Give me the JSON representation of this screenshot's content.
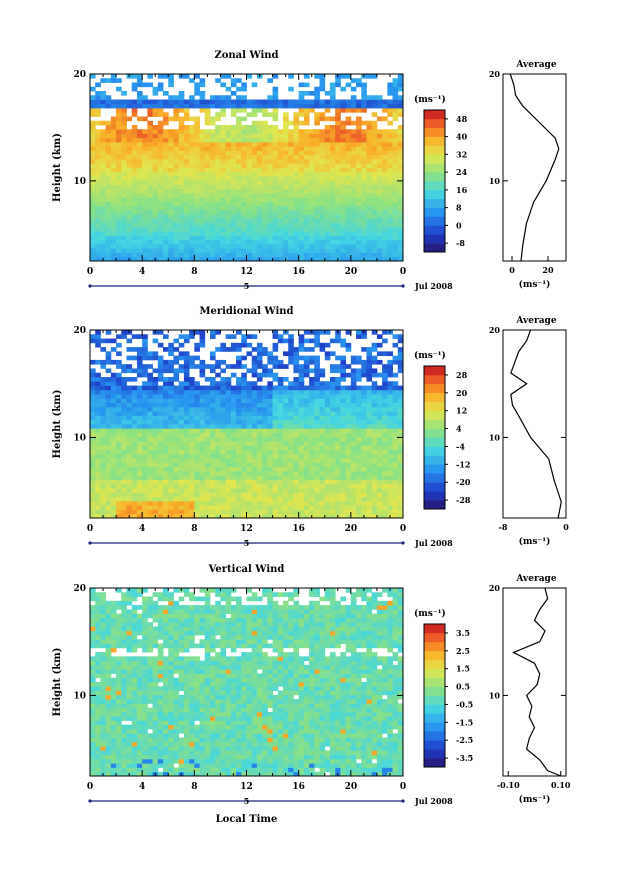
{
  "page": {
    "date_label": "Jul 2008",
    "xlabel": "Local Time",
    "day_label": "5"
  },
  "chart_data": [
    {
      "type": "heatmap",
      "title": "Zonal Wind",
      "ylabel": "Height (km)",
      "yticks": [
        "20",
        "10"
      ],
      "ylim": [
        2.5,
        20
      ],
      "xlim": [
        0,
        24
      ],
      "xtick_labels": [
        "0",
        "4",
        "8",
        "12",
        "16",
        "20",
        "0"
      ],
      "colorbar": {
        "unit": "(ms⁻¹)",
        "ticks": [
          "48",
          "40",
          "32",
          "24",
          "16",
          "8",
          "0",
          "-8"
        ],
        "range": [
          -12,
          52
        ]
      },
      "average": {
        "title": "Average",
        "yticks": [
          "20",
          "10"
        ],
        "xtick_labels": [
          "0",
          "20"
        ],
        "xlabel": "(ms⁻¹)",
        "xlim": [
          -5,
          30
        ],
        "profile_height_km": [
          2.5,
          4,
          6,
          8,
          10,
          12,
          13,
          14,
          15,
          16,
          17,
          18,
          19,
          20
        ],
        "profile_value": [
          5,
          6,
          8,
          12,
          19,
          24,
          26,
          24,
          18,
          12,
          6,
          2,
          1,
          -1
        ]
      }
    },
    {
      "type": "heatmap",
      "title": "Meridional Wind",
      "ylabel": "Height (km)",
      "yticks": [
        "20",
        "10"
      ],
      "ylim": [
        2.5,
        20
      ],
      "xlim": [
        0,
        24
      ],
      "xtick_labels": [
        "0",
        "4",
        "8",
        "12",
        "16",
        "20",
        "0"
      ],
      "colorbar": {
        "unit": "(ms⁻¹)",
        "ticks": [
          "28",
          "20",
          "12",
          "4",
          "-4",
          "-12",
          "-20",
          "-28"
        ],
        "range": [
          -32,
          32
        ]
      },
      "average": {
        "title": "Average",
        "yticks": [
          "20",
          "10"
        ],
        "xtick_labels": [
          "-8",
          "0"
        ],
        "xlabel": "(ms⁻¹)",
        "xlim": [
          -8,
          0
        ],
        "profile_height_km": [
          2.5,
          4,
          6,
          8,
          10,
          12,
          13,
          14,
          15,
          16,
          17,
          18,
          19,
          20
        ],
        "profile_value": [
          -1,
          -0.6,
          -1.5,
          -2.2,
          -4.5,
          -6,
          -6.8,
          -7,
          -5,
          -7,
          -6.5,
          -6,
          -5,
          -4.5
        ]
      }
    },
    {
      "type": "heatmap",
      "title": "Vertical Wind",
      "ylabel": "Height (km)",
      "yticks": [
        "20",
        "10"
      ],
      "ylim": [
        2.5,
        20
      ],
      "xlim": [
        0,
        24
      ],
      "xtick_labels": [
        "0",
        "4",
        "8",
        "12",
        "16",
        "20",
        "0"
      ],
      "colorbar": {
        "unit": "(ms⁻¹)",
        "ticks": [
          "3.5",
          "2.5",
          "1.5",
          "0.5",
          "-0.5",
          "-1.5",
          "-2.5",
          "-3.5"
        ],
        "range": [
          -4,
          4
        ]
      },
      "average": {
        "title": "Average",
        "yticks": [
          "20",
          "10"
        ],
        "xtick_labels": [
          "-0.10",
          "0.10"
        ],
        "xlabel": "(ms⁻¹)",
        "xlim": [
          -0.12,
          0.12
        ],
        "profile_height_km": [
          2.5,
          3,
          4,
          5,
          6,
          7,
          8,
          9,
          10,
          11,
          12,
          13,
          14,
          15,
          16,
          17,
          18,
          19,
          20
        ],
        "profile_value": [
          0.1,
          0.05,
          0.02,
          -0.03,
          -0.02,
          0,
          -0.02,
          -0.01,
          -0.03,
          0.01,
          0.02,
          0.0,
          -0.08,
          0.02,
          0.04,
          0.0,
          0.02,
          0.05,
          0.04
        ]
      }
    }
  ]
}
